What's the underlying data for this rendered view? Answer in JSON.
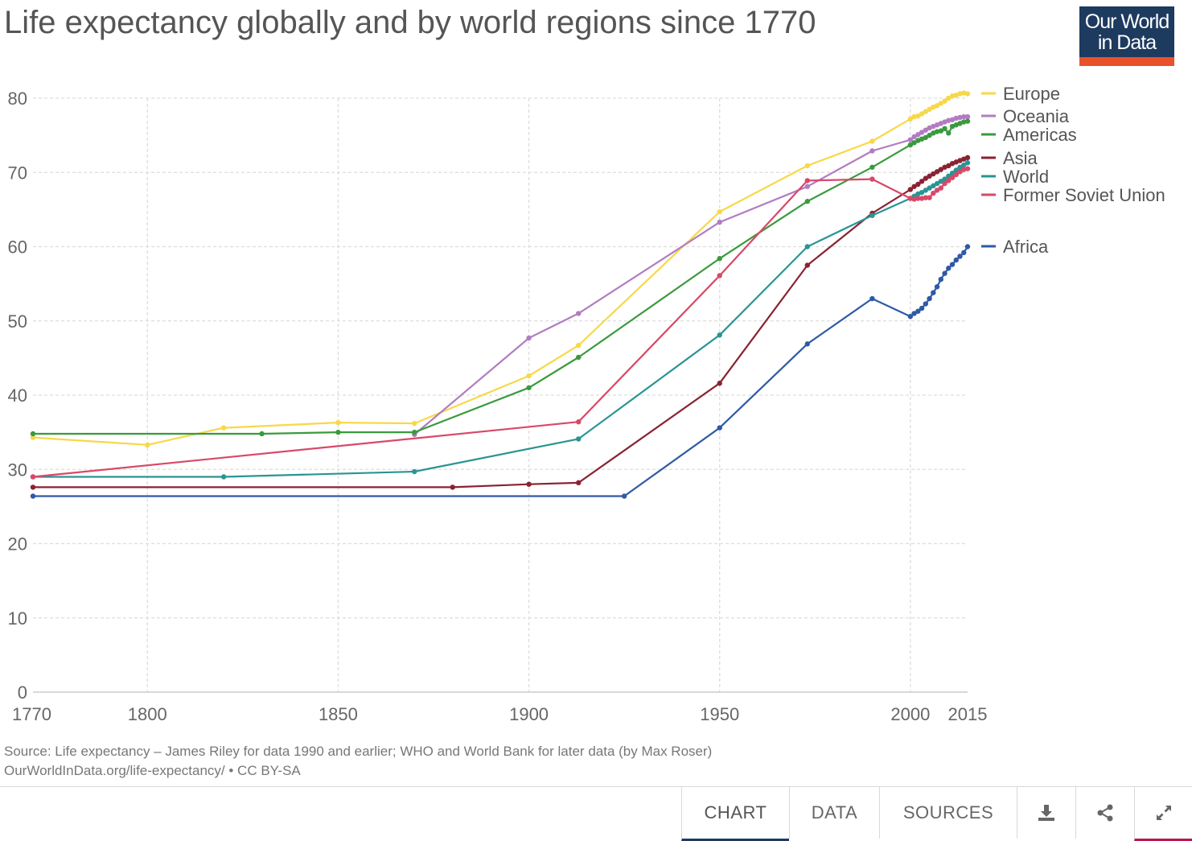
{
  "title": "Life expectancy globally and by world regions since 1770",
  "logo": {
    "line1": "Our World",
    "line2": "in Data"
  },
  "source_line1": "Source: Life expectancy – James Riley for data 1990 and earlier; WHO and World Bank for later data (by Max Roser)",
  "source_line2": "OurWorldInData.org/life-expectancy/ • CC BY-SA",
  "tabs": {
    "chart": "CHART",
    "data": "DATA",
    "sources": "SOURCES"
  },
  "icons": {
    "download": "download-icon",
    "share": "share-icon",
    "expand": "expand-icon"
  },
  "colors": {
    "logo_bg": "#1d3a5f",
    "logo_accent": "#e8512a",
    "active_tab": "#1d3a5f",
    "expand_tab": "#b8184b"
  },
  "chart_data": {
    "type": "line",
    "title": "Life expectancy globally and by world regions since 1770",
    "xlabel": "",
    "ylabel": "",
    "xlim": [
      1770,
      2015
    ],
    "ylim": [
      0,
      80
    ],
    "x_ticks": [
      1770,
      1800,
      1850,
      1900,
      1950,
      2000,
      2015
    ],
    "y_ticks": [
      0,
      10,
      20,
      30,
      40,
      50,
      60,
      70,
      80
    ],
    "grid": true,
    "legend_position": "right",
    "series": [
      {
        "name": "Europe",
        "color": "#f7d84a",
        "x": [
          1770,
          1800,
          1820,
          1850,
          1870,
          1900,
          1913,
          1950,
          1973,
          1990,
          2000,
          2001,
          2002,
          2003,
          2004,
          2005,
          2006,
          2007,
          2008,
          2009,
          2010,
          2011,
          2012,
          2013,
          2014,
          2015
        ],
        "y": [
          34.3,
          33.3,
          35.6,
          36.3,
          36.2,
          42.6,
          46.7,
          64.7,
          70.9,
          74.2,
          77.2,
          77.5,
          77.6,
          77.9,
          78.2,
          78.5,
          78.8,
          79.0,
          79.3,
          79.6,
          80.0,
          80.3,
          80.4,
          80.6,
          80.7,
          80.6
        ]
      },
      {
        "name": "Oceania",
        "color": "#b27cc2",
        "x": [
          1870,
          1900,
          1913,
          1950,
          1973,
          1990,
          2000,
          2001,
          2002,
          2003,
          2004,
          2005,
          2006,
          2007,
          2008,
          2009,
          2010,
          2011,
          2012,
          2013,
          2014,
          2015
        ],
        "y": [
          34.7,
          47.7,
          51.0,
          63.3,
          68.1,
          72.9,
          74.4,
          74.8,
          75.1,
          75.4,
          75.7,
          76.0,
          76.2,
          76.4,
          76.6,
          76.8,
          77.0,
          77.1,
          77.3,
          77.4,
          77.5,
          77.5
        ]
      },
      {
        "name": "Americas",
        "color": "#3a9a3e",
        "x": [
          1770,
          1830,
          1850,
          1870,
          1900,
          1913,
          1950,
          1973,
          1990,
          2000,
          2001,
          2002,
          2003,
          2004,
          2005,
          2006,
          2007,
          2008,
          2009,
          2010,
          2011,
          2012,
          2013,
          2014,
          2015
        ],
        "y": [
          34.8,
          34.8,
          35.0,
          35.0,
          41.0,
          45.1,
          58.4,
          66.1,
          70.7,
          73.7,
          74.0,
          74.3,
          74.5,
          74.7,
          75.0,
          75.3,
          75.5,
          75.6,
          75.9,
          75.3,
          76.2,
          76.4,
          76.6,
          76.8,
          76.9
        ]
      },
      {
        "name": "Asia",
        "color": "#8a2232",
        "x": [
          1770,
          1880,
          1900,
          1913,
          1950,
          1973,
          1990,
          2000,
          2001,
          2002,
          2003,
          2004,
          2005,
          2006,
          2007,
          2008,
          2009,
          2010,
          2011,
          2012,
          2013,
          2014,
          2015
        ],
        "y": [
          27.6,
          27.6,
          28.0,
          28.2,
          41.6,
          57.5,
          64.5,
          67.7,
          68.1,
          68.4,
          68.8,
          69.2,
          69.5,
          69.8,
          70.1,
          70.4,
          70.7,
          70.9,
          71.2,
          71.4,
          71.6,
          71.8,
          72.0
        ]
      },
      {
        "name": "World",
        "color": "#2a9494",
        "x": [
          1770,
          1820,
          1870,
          1913,
          1950,
          1973,
          1990,
          2000,
          2001,
          2002,
          2003,
          2004,
          2005,
          2006,
          2007,
          2008,
          2009,
          2010,
          2011,
          2012,
          2013,
          2014,
          2015
        ],
        "y": [
          29.0,
          29.0,
          29.7,
          34.1,
          48.1,
          60.0,
          64.2,
          66.5,
          66.8,
          67.1,
          67.3,
          67.6,
          67.9,
          68.2,
          68.5,
          68.8,
          69.1,
          69.5,
          69.9,
          70.3,
          70.7,
          71.0,
          71.3
        ]
      },
      {
        "name": "Former Soviet Union",
        "color": "#d94868",
        "x": [
          1770,
          1913,
          1950,
          1973,
          1990,
          2000,
          2001,
          2002,
          2003,
          2004,
          2005,
          2006,
          2007,
          2008,
          2009,
          2010,
          2011,
          2012,
          2013,
          2014,
          2015
        ],
        "y": [
          29.0,
          36.4,
          56.1,
          68.9,
          69.1,
          66.5,
          66.4,
          66.5,
          66.5,
          66.6,
          66.6,
          67.2,
          67.6,
          67.9,
          68.5,
          68.9,
          69.3,
          69.7,
          70.1,
          70.4,
          70.5
        ]
      },
      {
        "name": "Africa",
        "color": "#2e5aa5",
        "x": [
          1770,
          1925,
          1950,
          1973,
          1990,
          2000,
          2001,
          2002,
          2003,
          2004,
          2005,
          2006,
          2007,
          2008,
          2009,
          2010,
          2011,
          2012,
          2013,
          2014,
          2015
        ],
        "y": [
          26.4,
          26.4,
          35.6,
          46.9,
          53.0,
          50.6,
          51.0,
          51.3,
          51.7,
          52.3,
          53.0,
          53.8,
          54.6,
          55.6,
          56.4,
          57.1,
          57.6,
          58.2,
          58.7,
          59.2,
          60.0
        ]
      }
    ]
  }
}
